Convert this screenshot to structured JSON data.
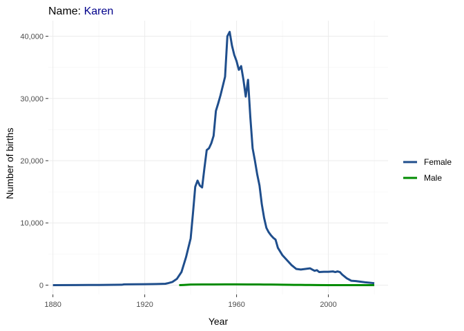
{
  "chart_data": {
    "type": "line",
    "title": {
      "prefix": "Name: ",
      "name": "Karen",
      "name_color": "#00008b"
    },
    "xlabel": "Year",
    "ylabel": "Number of births",
    "xlim": [
      1878,
      2026
    ],
    "ylim": [
      -1500,
      42500
    ],
    "x_ticks": [
      1880,
      1920,
      1960,
      2000
    ],
    "x_tick_labels": [
      "1880",
      "1920",
      "1960",
      "2000"
    ],
    "x_minor_ticks": [
      1900,
      1940,
      1980,
      2020
    ],
    "y_ticks": [
      0,
      10000,
      20000,
      30000,
      40000
    ],
    "y_tick_labels": [
      "0",
      "10,000",
      "20,000",
      "30,000",
      "40,000"
    ],
    "y_minor_ticks": [
      5000,
      15000,
      25000,
      35000
    ],
    "grid": true,
    "legend_position": "right",
    "series": [
      {
        "name": "Female",
        "color": "#1f4e8c",
        "x": [
          1880,
          1890,
          1900,
          1910,
          1911,
          1915,
          1920,
          1925,
          1929,
          1930,
          1932,
          1934,
          1936,
          1938,
          1939,
          1940,
          1941,
          1942,
          1943,
          1944,
          1945,
          1946,
          1947,
          1948,
          1949,
          1950,
          1951,
          1952,
          1953,
          1954,
          1955,
          1956,
          1957,
          1958,
          1959,
          1960,
          1961,
          1962,
          1963,
          1964,
          1965,
          1966,
          1967,
          1968,
          1969,
          1970,
          1971,
          1972,
          1973,
          1974,
          1975,
          1976,
          1977,
          1978,
          1980,
          1982,
          1984,
          1986,
          1988,
          1990,
          1992,
          1993,
          1994,
          1995,
          1996,
          1998,
          2000,
          2002,
          2003,
          2004,
          2005,
          2006,
          2008,
          2010,
          2012,
          2014,
          2016,
          2018,
          2019,
          2020
        ],
        "values": [
          0,
          10,
          30,
          60,
          120,
          130,
          150,
          180,
          220,
          300,
          500,
          1000,
          2100,
          4500,
          6000,
          7500,
          11500,
          15800,
          16800,
          16000,
          15700,
          18800,
          21700,
          22000,
          22800,
          24000,
          28000,
          29200,
          30500,
          32000,
          33500,
          40000,
          40700,
          38500,
          37000,
          36000,
          34600,
          35200,
          33000,
          30300,
          33000,
          27000,
          22000,
          20000,
          17800,
          16000,
          13000,
          10800,
          9200,
          8500,
          8000,
          7600,
          7300,
          6000,
          4800,
          4000,
          3200,
          2600,
          2500,
          2600,
          2700,
          2500,
          2300,
          2400,
          2100,
          2150,
          2150,
          2200,
          2100,
          2200,
          2100,
          1700,
          1100,
          700,
          650,
          550,
          450,
          380,
          350,
          300
        ]
      },
      {
        "name": "Male",
        "color": "#008b00",
        "x": [
          1935,
          1937,
          1940,
          1945,
          1950,
          1955,
          1960,
          1965,
          1970,
          1975,
          1978,
          1980,
          1983,
          1985,
          1988,
          1990,
          1992,
          1995,
          2000,
          2005,
          2010,
          2015,
          2020
        ],
        "values": [
          0,
          30,
          90,
          100,
          110,
          120,
          120,
          110,
          100,
          90,
          80,
          60,
          50,
          40,
          40,
          30,
          25,
          10,
          0,
          0,
          0,
          0,
          0
        ]
      }
    ]
  }
}
